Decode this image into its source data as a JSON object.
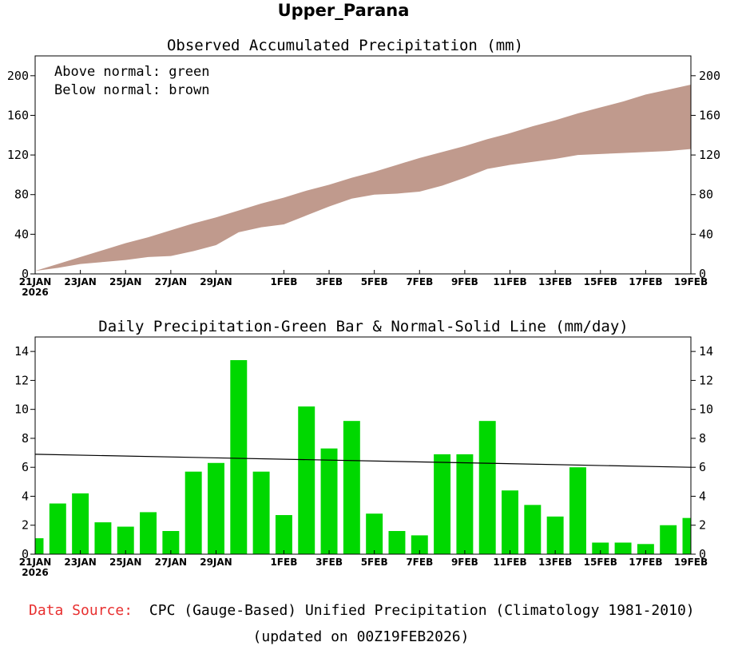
{
  "title": "Upper_Parana",
  "footer": {
    "source_label": "Data Source:",
    "source_text": "CPC (Gauge-Based) Unified Precipitation (Climatology 1981-2010)",
    "updated": "(updated on 00Z19FEB2026)"
  },
  "colors": {
    "below_normal": "#c09a8d",
    "bar": "#00d800",
    "source_label": "#e83030"
  },
  "chart_data": [
    {
      "type": "area",
      "title": "Observed Accumulated Precipitation (mm)",
      "legend": [
        "Above normal: green",
        "Below normal: brown"
      ],
      "legend_position": "top-left",
      "ylim": [
        0,
        220
      ],
      "yticks": [
        0,
        40,
        80,
        120,
        160,
        200
      ],
      "xticks": [
        {
          "day": 0,
          "label": "21JAN",
          "sub": "2026"
        },
        {
          "day": 2,
          "label": "23JAN"
        },
        {
          "day": 4,
          "label": "25JAN"
        },
        {
          "day": 6,
          "label": "27JAN"
        },
        {
          "day": 8,
          "label": "29JAN"
        },
        {
          "day": 11,
          "label": "1FEB"
        },
        {
          "day": 13,
          "label": "3FEB"
        },
        {
          "day": 15,
          "label": "5FEB"
        },
        {
          "day": 17,
          "label": "7FEB"
        },
        {
          "day": 19,
          "label": "9FEB"
        },
        {
          "day": 21,
          "label": "11FEB"
        },
        {
          "day": 23,
          "label": "13FEB"
        },
        {
          "day": 25,
          "label": "15FEB"
        },
        {
          "day": 27,
          "label": "17FEB"
        },
        {
          "day": 29,
          "label": "19FEB"
        }
      ],
      "days": [
        0,
        1,
        2,
        3,
        4,
        5,
        6,
        7,
        8,
        9,
        10,
        11,
        12,
        13,
        14,
        15,
        16,
        17,
        18,
        19,
        20,
        21,
        22,
        23,
        24,
        25,
        26,
        27,
        28,
        29
      ],
      "normal": [
        3,
        10,
        17,
        24,
        31,
        37,
        44,
        51,
        57,
        64,
        71,
        77,
        84,
        90,
        97,
        103,
        110,
        117,
        123,
        129,
        136,
        142,
        149,
        155,
        162,
        168,
        174,
        181,
        186,
        191
      ],
      "observed": [
        3,
        6,
        10,
        12,
        14,
        17,
        18,
        23,
        29,
        42,
        47,
        50,
        59,
        68,
        76,
        80,
        81,
        83,
        89,
        97,
        106,
        110,
        113,
        116,
        120,
        121,
        122,
        123,
        124,
        126
      ]
    },
    {
      "type": "bar",
      "title": "Daily Precipitation-Green Bar & Normal-Solid Line (mm/day)",
      "ylim": [
        0,
        15
      ],
      "yticks": [
        0,
        2,
        4,
        6,
        8,
        10,
        12,
        14
      ],
      "xticks": [
        {
          "day": 0,
          "label": "21JAN",
          "sub": "2026"
        },
        {
          "day": 2,
          "label": "23JAN"
        },
        {
          "day": 4,
          "label": "25JAN"
        },
        {
          "day": 6,
          "label": "27JAN"
        },
        {
          "day": 8,
          "label": "29JAN"
        },
        {
          "day": 11,
          "label": "1FEB"
        },
        {
          "day": 13,
          "label": "3FEB"
        },
        {
          "day": 15,
          "label": "5FEB"
        },
        {
          "day": 17,
          "label": "7FEB"
        },
        {
          "day": 19,
          "label": "9FEB"
        },
        {
          "day": 21,
          "label": "11FEB"
        },
        {
          "day": 23,
          "label": "13FEB"
        },
        {
          "day": 25,
          "label": "15FEB"
        },
        {
          "day": 27,
          "label": "17FEB"
        },
        {
          "day": 29,
          "label": "19FEB"
        }
      ],
      "days": [
        0,
        1,
        2,
        3,
        4,
        5,
        6,
        7,
        8,
        9,
        10,
        11,
        12,
        13,
        14,
        15,
        16,
        17,
        18,
        19,
        20,
        21,
        22,
        23,
        24,
        25,
        26,
        27,
        28,
        29
      ],
      "values": [
        1.1,
        3.5,
        4.2,
        2.2,
        1.9,
        2.9,
        1.6,
        5.7,
        6.3,
        13.4,
        5.7,
        2.7,
        10.2,
        7.3,
        9.2,
        2.8,
        1.6,
        1.3,
        6.9,
        6.9,
        9.2,
        4.4,
        3.4,
        2.6,
        6.0,
        0.8,
        0.8,
        0.7,
        2.0,
        2.5
      ],
      "normal_line": {
        "start": 6.9,
        "end": 6.0
      }
    }
  ]
}
